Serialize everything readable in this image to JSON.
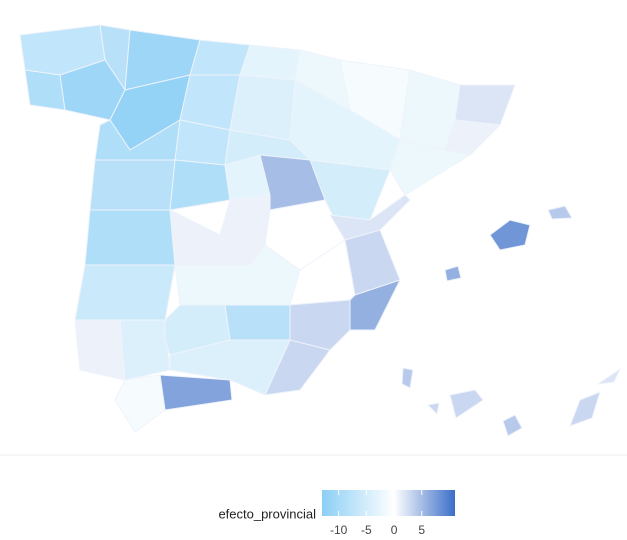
{
  "chart_data": {
    "type": "map",
    "values": [
      -7,
      -8,
      -9,
      -11,
      -11,
      -12,
      -7,
      -7,
      -3,
      -2,
      -4,
      -1,
      -3,
      -5,
      -2,
      2,
      1,
      -2,
      -9,
      -7,
      -8,
      -9,
      -3,
      -5,
      5,
      1,
      0,
      -9,
      1,
      -6,
      -2,
      0,
      3,
      2,
      6,
      3,
      1,
      -4,
      -5,
      -8,
      3,
      -4,
      7,
      -1,
      8,
      4,
      6,
      4,
      3,
      4,
      3,
      2,
      3
    ],
    "legend_title": "efecto_provincial",
    "clim": [
      -13,
      11
    ],
    "ticks": [
      -10,
      -5,
      0,
      5
    ],
    "colors": {
      "low": "#8ccff5",
      "mid": "#ffffff",
      "high": "#3b6ec8"
    }
  }
}
